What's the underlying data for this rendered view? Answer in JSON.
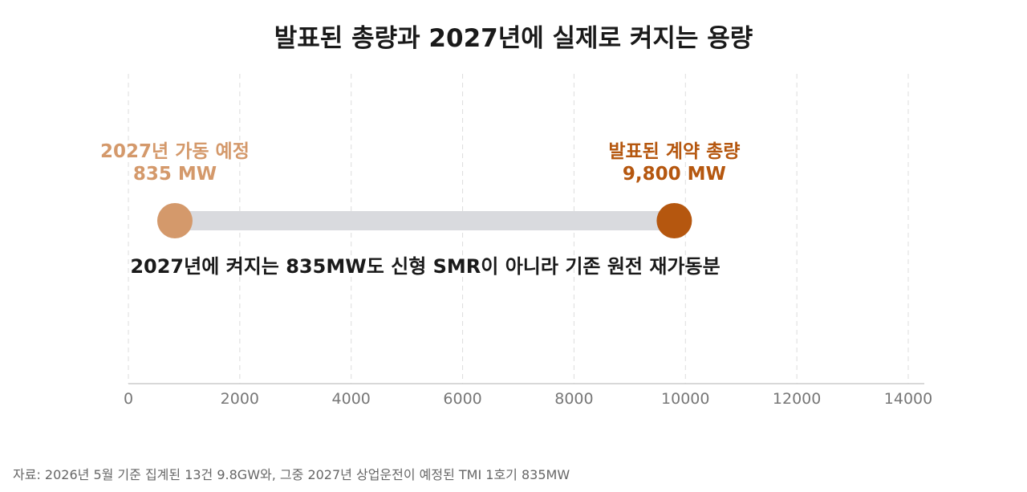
{
  "chart_data": {
    "type": "dumbbell",
    "title": "발표된 총량과 2027년에 실제로 켜지는 용량",
    "xlim": [
      0,
      14000
    ],
    "xticks": [
      0,
      2000,
      4000,
      6000,
      8000,
      10000,
      12000,
      14000
    ],
    "xtick_labels": [
      "0",
      "2000",
      "4000",
      "6000",
      "8000",
      "10000",
      "12000",
      "14000"
    ],
    "grid": "vertical dashed",
    "points": [
      {
        "label": "2027년 가동 예정",
        "value_label": "835 MW",
        "value": 835,
        "color": "#D4996B"
      },
      {
        "label": "발표된 계약 총량",
        "value_label": "9,800 MW",
        "value": 9800,
        "color": "#B5570F"
      }
    ],
    "connector_color": "#D9DADE",
    "annotation": "2027년에 켜지는 835MW도 신형 SMR이 아니라 기존 원전 재가동분"
  },
  "source_note": "자료: 2026년 5월 기준 집계된 13건 9.8GW와, 그중 2027년 상업운전이 예정된 TMI 1호기 835MW",
  "colors": {
    "axis": "#cccccc",
    "grid": "#dddddd",
    "tick_text": "#777777"
  }
}
